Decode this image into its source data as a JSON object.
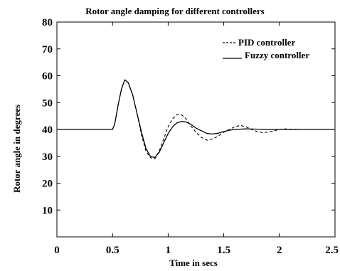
{
  "chart_data": {
    "type": "line",
    "title": "Rotor angle damping for different controllers",
    "xlabel": "Time in secs",
    "ylabel": "Rotor angle in degrees",
    "xlim": [
      0,
      2.5
    ],
    "ylim": [
      0,
      80
    ],
    "x_ticks": [
      0,
      0.5,
      1,
      1.5,
      2,
      2.5
    ],
    "x_tick_labels": [
      "0",
      "0.5",
      "1",
      "1.5",
      "2",
      "2.5"
    ],
    "y_ticks": [
      10,
      20,
      30,
      40,
      50,
      60,
      70,
      80
    ],
    "y_tick_labels": [
      "10",
      "20",
      "30",
      "40",
      "50",
      "60",
      "70",
      "80"
    ],
    "grid": false,
    "legend_position": "top-right",
    "series": [
      {
        "name": "PID controller",
        "line_style": "dashed",
        "color": "#000000",
        "x": [
          0,
          0.45,
          0.5,
          0.52,
          0.55,
          0.58,
          0.61,
          0.64,
          0.68,
          0.72,
          0.76,
          0.8,
          0.84,
          0.88,
          0.92,
          0.96,
          1.0,
          1.04,
          1.08,
          1.12,
          1.16,
          1.2,
          1.25,
          1.3,
          1.35,
          1.4,
          1.45,
          1.5,
          1.55,
          1.6,
          1.65,
          1.7,
          1.75,
          1.8,
          1.85,
          1.9,
          1.95,
          2.0,
          2.05,
          2.1,
          2.2,
          2.3,
          2.4,
          2.5
        ],
        "y": [
          40,
          40,
          40,
          42,
          49,
          55,
          58.5,
          57.5,
          53,
          46,
          38,
          32,
          29.5,
          29,
          32,
          36.5,
          41,
          44,
          45.5,
          45.5,
          44,
          41.5,
          39,
          37,
          36,
          36.5,
          37.5,
          39,
          40,
          41,
          41.5,
          41,
          40,
          39.2,
          38.8,
          39,
          39.5,
          40,
          40.2,
          40.1,
          40,
          40,
          40,
          40
        ]
      },
      {
        "name": "Fuzzy controller",
        "line_style": "solid",
        "color": "#000000",
        "x": [
          0,
          0.45,
          0.5,
          0.52,
          0.55,
          0.58,
          0.61,
          0.64,
          0.68,
          0.72,
          0.76,
          0.8,
          0.84,
          0.88,
          0.92,
          0.96,
          1.0,
          1.04,
          1.08,
          1.12,
          1.16,
          1.2,
          1.25,
          1.3,
          1.35,
          1.4,
          1.45,
          1.5,
          1.55,
          1.6,
          1.7,
          1.8,
          1.9,
          2.0,
          2.1,
          2.2,
          2.3,
          2.4,
          2.5
        ],
        "y": [
          40,
          40,
          40,
          42,
          49,
          55,
          58.5,
          57.5,
          53,
          46,
          39,
          33,
          30,
          29.5,
          31.5,
          35,
          38.5,
          41,
          42.5,
          43,
          42.8,
          42,
          40.5,
          39.5,
          38.5,
          38.3,
          38.6,
          39.2,
          39.7,
          40,
          40.2,
          40.1,
          40,
          40,
          40,
          40,
          40,
          40,
          40
        ]
      }
    ]
  }
}
